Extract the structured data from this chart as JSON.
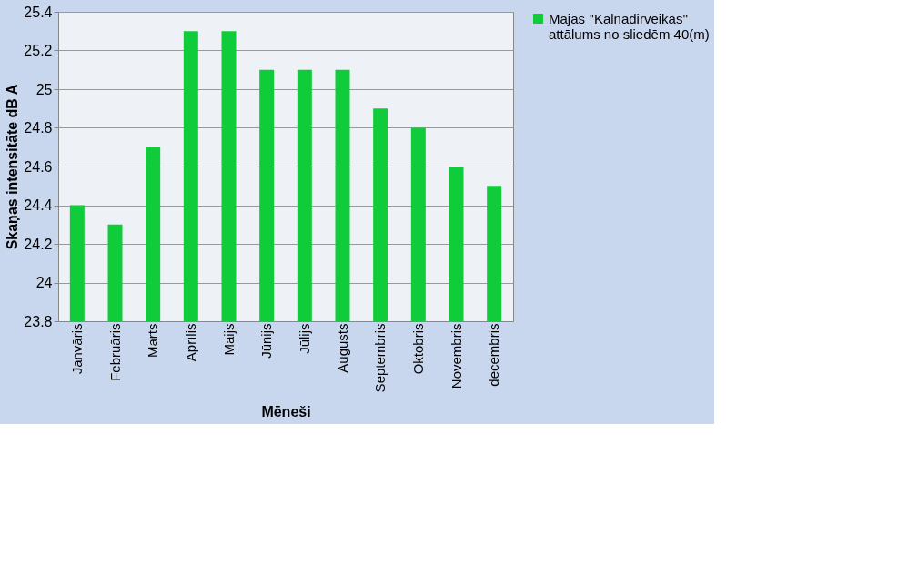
{
  "chart_data": {
    "type": "bar",
    "xlabel": "Mēneši",
    "ylabel": "Skaņas intensitāte dB A",
    "categories": [
      "Janvāris",
      "Februāris",
      "Marts",
      "Aprīlis",
      "Maijs",
      "Jūnijs",
      "Jūlijs",
      "Augusts",
      "Septembris",
      "Oktobris",
      "Novembris",
      "decembris"
    ],
    "series": [
      {
        "name": "Mājas ''Kalnadirveikas'' attālums no sliedēm 40(m)",
        "color": "#11cc3a",
        "values": [
          24.4,
          24.3,
          24.7,
          25.3,
          25.3,
          25.1,
          25.1,
          25.1,
          24.9,
          24.8,
          24.6,
          24.5
        ]
      }
    ],
    "ylim": [
      23.8,
      25.4
    ],
    "yticks": [
      23.8,
      24,
      24.2,
      24.4,
      24.6,
      24.8,
      25,
      25.2,
      25.4
    ],
    "grid": "y",
    "legend": "right"
  }
}
